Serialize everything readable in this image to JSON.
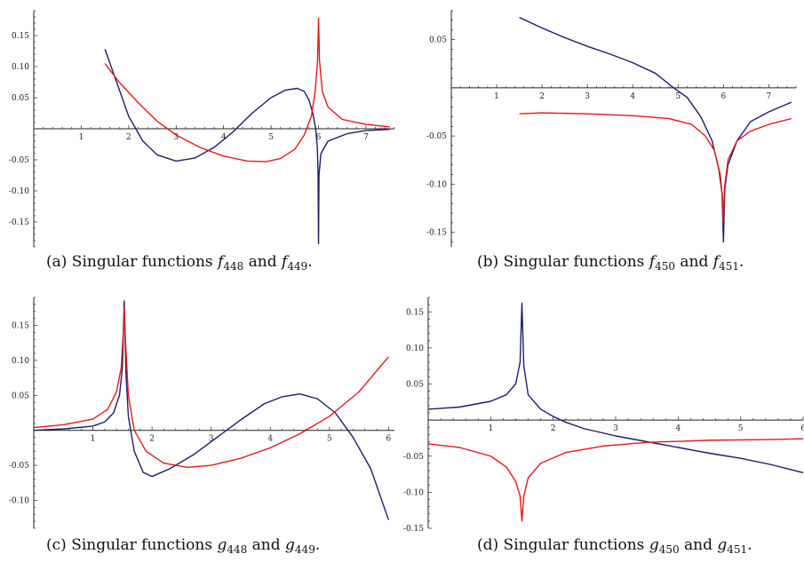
{
  "colors": {
    "blue": "#1b1f6b",
    "red": "#e31a1c",
    "axis": "#222222"
  },
  "panels": [
    {
      "id": "a",
      "caption": {
        "prefix": "(a)  Singular functions ",
        "f1": "f",
        "s1": "448",
        "mid": " and ",
        "f2": "f",
        "s2": "449",
        "end": "."
      }
    },
    {
      "id": "b",
      "caption": {
        "prefix": "(b)  Singular functions ",
        "f1": "f",
        "s1": "450",
        "mid": " and ",
        "f2": "f",
        "s2": "451",
        "end": "."
      }
    },
    {
      "id": "c",
      "caption": {
        "prefix": "(c)  Singular functions ",
        "f1": "g",
        "s1": "448",
        "mid": " and ",
        "f2": "g",
        "s2": "449",
        "end": "."
      }
    },
    {
      "id": "d",
      "caption": {
        "prefix": "(d)  Singular functions ",
        "f1": "g",
        "s1": "450",
        "mid": " and ",
        "f2": "g",
        "s2": "451",
        "end": "."
      }
    }
  ],
  "chart_data": [
    {
      "type": "line",
      "xlim": [
        0,
        7.6
      ],
      "ylim": [
        -0.19,
        0.19
      ],
      "x_ticks": [
        1,
        2,
        3,
        4,
        5,
        6,
        7
      ],
      "y_ticks": [
        -0.15,
        -0.1,
        -0.05,
        0.05,
        0.1,
        0.15
      ],
      "y_tick_labels": [
        "-0.15",
        "-0.10",
        "-0.05",
        "0.05",
        "0.10",
        "0.15"
      ],
      "series": [
        {
          "color": "blue",
          "points": [
            [
              1.5,
              0.128
            ],
            [
              1.7,
              0.085
            ],
            [
              2.0,
              0.02
            ],
            [
              2.3,
              -0.02
            ],
            [
              2.6,
              -0.042
            ],
            [
              3.0,
              -0.052
            ],
            [
              3.4,
              -0.047
            ],
            [
              3.8,
              -0.03
            ],
            [
              4.2,
              -0.005
            ],
            [
              4.6,
              0.025
            ],
            [
              5.0,
              0.05
            ],
            [
              5.3,
              0.062
            ],
            [
              5.55,
              0.065
            ],
            [
              5.7,
              0.06
            ],
            [
              5.8,
              0.046
            ],
            [
              5.88,
              0.025
            ],
            [
              5.94,
              0.0
            ],
            [
              5.975,
              -0.03
            ],
            [
              5.99,
              -0.07
            ],
            [
              6.0,
              -0.185
            ],
            [
              6.01,
              -0.075
            ],
            [
              6.05,
              -0.04
            ],
            [
              6.2,
              -0.02
            ],
            [
              6.6,
              -0.008
            ],
            [
              7.0,
              -0.003
            ],
            [
              7.5,
              -0.001
            ]
          ]
        },
        {
          "color": "red",
          "points": [
            [
              1.5,
              0.105
            ],
            [
              1.8,
              0.075
            ],
            [
              2.2,
              0.042
            ],
            [
              2.6,
              0.012
            ],
            [
              3.0,
              -0.01
            ],
            [
              3.5,
              -0.03
            ],
            [
              4.0,
              -0.044
            ],
            [
              4.5,
              -0.052
            ],
            [
              4.9,
              -0.053
            ],
            [
              5.2,
              -0.048
            ],
            [
              5.5,
              -0.033
            ],
            [
              5.7,
              -0.01
            ],
            [
              5.85,
              0.02
            ],
            [
              5.93,
              0.06
            ],
            [
              5.98,
              0.11
            ],
            [
              6.0,
              0.178
            ],
            [
              6.02,
              0.11
            ],
            [
              6.08,
              0.06
            ],
            [
              6.2,
              0.035
            ],
            [
              6.5,
              0.015
            ],
            [
              7.0,
              0.007
            ],
            [
              7.5,
              0.003
            ]
          ]
        }
      ]
    },
    {
      "type": "line",
      "xlim": [
        0,
        7.6
      ],
      "ylim": [
        -0.165,
        0.08
      ],
      "x_ticks": [
        1,
        2,
        3,
        4,
        5,
        6,
        7
      ],
      "y_ticks": [
        -0.15,
        -0.1,
        -0.05,
        0.05
      ],
      "y_tick_labels": [
        "-0.15",
        "-0.10",
        "-0.05",
        "0.05"
      ],
      "series": [
        {
          "color": "blue",
          "points": [
            [
              1.5,
              0.073
            ],
            [
              2.0,
              0.062
            ],
            [
              2.5,
              0.052
            ],
            [
              3.0,
              0.043
            ],
            [
              3.5,
              0.035
            ],
            [
              4.0,
              0.026
            ],
            [
              4.5,
              0.015
            ],
            [
              4.9,
              0.0
            ],
            [
              5.2,
              -0.01
            ],
            [
              5.5,
              -0.03
            ],
            [
              5.75,
              -0.055
            ],
            [
              5.9,
              -0.085
            ],
            [
              5.97,
              -0.11
            ],
            [
              6.0,
              -0.16
            ],
            [
              6.03,
              -0.105
            ],
            [
              6.1,
              -0.08
            ],
            [
              6.3,
              -0.055
            ],
            [
              6.6,
              -0.035
            ],
            [
              7.0,
              -0.025
            ],
            [
              7.5,
              -0.015
            ]
          ]
        },
        {
          "color": "red",
          "points": [
            [
              1.5,
              -0.027
            ],
            [
              2.0,
              -0.026
            ],
            [
              3.0,
              -0.027
            ],
            [
              4.0,
              -0.029
            ],
            [
              4.8,
              -0.032
            ],
            [
              5.3,
              -0.038
            ],
            [
              5.6,
              -0.05
            ],
            [
              5.8,
              -0.065
            ],
            [
              5.93,
              -0.09
            ],
            [
              5.98,
              -0.115
            ],
            [
              6.0,
              -0.14
            ],
            [
              6.02,
              -0.105
            ],
            [
              6.1,
              -0.075
            ],
            [
              6.3,
              -0.055
            ],
            [
              6.6,
              -0.045
            ],
            [
              7.0,
              -0.038
            ],
            [
              7.5,
              -0.032
            ]
          ]
        }
      ]
    },
    {
      "type": "line",
      "xlim": [
        0,
        6.1
      ],
      "ylim": [
        -0.14,
        0.19
      ],
      "x_ticks": [
        1,
        2,
        3,
        4,
        5,
        6
      ],
      "y_ticks": [
        -0.1,
        -0.05,
        0.05,
        0.1,
        0.15
      ],
      "y_tick_labels": [
        "-0.10",
        "-0.05",
        "0.05",
        "0.10",
        "0.15"
      ],
      "series": [
        {
          "color": "blue",
          "points": [
            [
              0.0,
              0.0
            ],
            [
              0.5,
              0.002
            ],
            [
              1.0,
              0.006
            ],
            [
              1.2,
              0.012
            ],
            [
              1.35,
              0.025
            ],
            [
              1.45,
              0.05
            ],
            [
              1.5,
              0.09
            ],
            [
              1.53,
              0.185
            ],
            [
              1.56,
              0.08
            ],
            [
              1.6,
              0.02
            ],
            [
              1.7,
              -0.03
            ],
            [
              1.85,
              -0.06
            ],
            [
              2.0,
              -0.066
            ],
            [
              2.3,
              -0.055
            ],
            [
              2.7,
              -0.035
            ],
            [
              3.1,
              -0.01
            ],
            [
              3.5,
              0.015
            ],
            [
              3.9,
              0.038
            ],
            [
              4.2,
              0.048
            ],
            [
              4.5,
              0.052
            ],
            [
              4.8,
              0.045
            ],
            [
              5.1,
              0.025
            ],
            [
              5.4,
              -0.01
            ],
            [
              5.7,
              -0.055
            ],
            [
              6.0,
              -0.128
            ]
          ]
        },
        {
          "color": "red",
          "points": [
            [
              0.0,
              0.004
            ],
            [
              0.5,
              0.008
            ],
            [
              1.0,
              0.016
            ],
            [
              1.25,
              0.03
            ],
            [
              1.4,
              0.055
            ],
            [
              1.48,
              0.09
            ],
            [
              1.52,
              0.15
            ],
            [
              1.53,
              0.175
            ],
            [
              1.55,
              0.13
            ],
            [
              1.6,
              0.05
            ],
            [
              1.7,
              0.0
            ],
            [
              1.9,
              -0.03
            ],
            [
              2.2,
              -0.047
            ],
            [
              2.6,
              -0.053
            ],
            [
              3.0,
              -0.05
            ],
            [
              3.5,
              -0.04
            ],
            [
              4.0,
              -0.025
            ],
            [
              4.5,
              -0.005
            ],
            [
              5.0,
              0.02
            ],
            [
              5.5,
              0.055
            ],
            [
              6.0,
              0.105
            ]
          ]
        }
      ]
    },
    {
      "type": "line",
      "xlim": [
        0,
        6.0
      ],
      "ylim": [
        -0.15,
        0.17
      ],
      "x_ticks": [
        1,
        2,
        3,
        4,
        5,
        6
      ],
      "y_ticks": [
        -0.15,
        -0.1,
        -0.05,
        0.05,
        0.1,
        0.15
      ],
      "y_tick_labels": [
        "-0.15",
        "-0.10",
        "-0.05",
        "0.05",
        "0.10",
        "0.15"
      ],
      "series": [
        {
          "color": "blue",
          "points": [
            [
              0.0,
              0.015
            ],
            [
              0.5,
              0.018
            ],
            [
              1.0,
              0.026
            ],
            [
              1.25,
              0.035
            ],
            [
              1.4,
              0.05
            ],
            [
              1.47,
              0.08
            ],
            [
              1.5,
              0.162
            ],
            [
              1.53,
              0.075
            ],
            [
              1.6,
              0.035
            ],
            [
              1.8,
              0.015
            ],
            [
              2.0,
              0.005
            ],
            [
              2.2,
              -0.003
            ],
            [
              2.5,
              -0.012
            ],
            [
              3.0,
              -0.022
            ],
            [
              3.5,
              -0.03
            ],
            [
              4.0,
              -0.038
            ],
            [
              4.5,
              -0.046
            ],
            [
              5.0,
              -0.053
            ],
            [
              5.5,
              -0.062
            ],
            [
              6.0,
              -0.073
            ]
          ]
        },
        {
          "color": "red",
          "points": [
            [
              0.0,
              -0.033
            ],
            [
              0.5,
              -0.038
            ],
            [
              1.0,
              -0.05
            ],
            [
              1.25,
              -0.065
            ],
            [
              1.4,
              -0.085
            ],
            [
              1.47,
              -0.105
            ],
            [
              1.5,
              -0.14
            ],
            [
              1.53,
              -0.105
            ],
            [
              1.6,
              -0.08
            ],
            [
              1.8,
              -0.06
            ],
            [
              2.2,
              -0.045
            ],
            [
              2.8,
              -0.036
            ],
            [
              3.5,
              -0.031
            ],
            [
              4.5,
              -0.028
            ],
            [
              5.5,
              -0.027
            ],
            [
              6.0,
              -0.026
            ]
          ]
        }
      ]
    }
  ]
}
